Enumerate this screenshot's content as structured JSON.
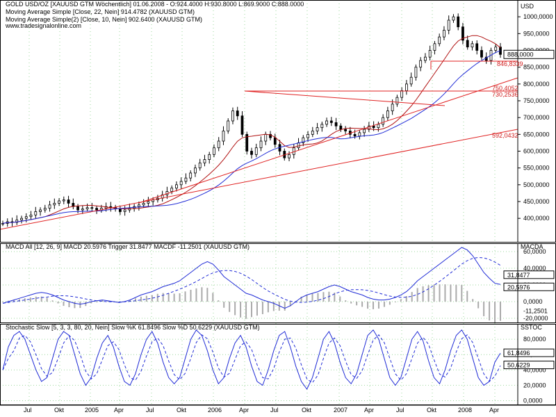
{
  "colors": {
    "price_up": "#000000",
    "price_down": "#000000",
    "sma22": "#b01010",
    "sma10": "#1f2bd6",
    "trendline": "#e02222",
    "macd_line": "#1f2bd6",
    "macd_trigger": "#1f2bd6",
    "macd_hist": "#aaaaaa",
    "stoch_k": "#1f2bd6",
    "stoch_d": "#1f2bd6",
    "grid": "#9ad79a",
    "panel_border": "#000000",
    "axis_text": "#000000",
    "level_text": "#d02020"
  },
  "price_header": {
    "title": "GOLD USD/OZ [XAUUSD GTM  Wöchentlich] 01.06.2008 - O:924.4000  H:930.8000  L:869.9000  C:888.0000",
    "sma22": "Moving Average Simple [Close, 22, Nein] 914.4782 (XAUUSD GTM)",
    "sma10": "Moving Average Simple(2) [Close, 10, Nein] 902.6400 (XAUUSD GTM)",
    "site": "www.tradesignalonline.com"
  },
  "macd_header": "MACD All [12, 26, 9] MACD 20.5976  Trigger 31.8477  MACDF -11.2501 (XAUUSD GTM)",
  "stoch_header": "Stochastic Slow [5, 3, 3, 80, 20, Nein] Slow %K 61.8496 Slow %D 50.6229 (XAUUSD GTM)",
  "axis_titles": {
    "price": "USD",
    "macd": "MACDA",
    "stoch": "SSTOC"
  },
  "x_labels": [
    "Jul",
    "Okt",
    "2005",
    "Apr",
    "Jul",
    "Okt",
    "2006",
    "Apr",
    "Jul",
    "Okt",
    "2007",
    "Apr",
    "Jul",
    "Okt",
    "2008",
    "Apr"
  ],
  "price_ticks": [
    "1000,0000",
    "950,0000",
    "900,0000",
    "850,0000",
    "800,0000",
    "750,0000",
    "700,0000",
    "650,0000",
    "600,0000",
    "550,0000",
    "500,0000",
    "450,0000",
    "400,0000"
  ],
  "macd_ticks": [
    "60,0000",
    "40,0000",
    "20,0000",
    "0,0000",
    "-20,0000"
  ],
  "stoch_ticks": [
    "80,0000",
    "60,0000",
    "40,0000",
    "20,0000",
    "0,0000"
  ],
  "levels": {
    "last_price": "888,0000",
    "l846": "846,8339",
    "l750": "750,4052",
    "l730": "730,2536",
    "l592": "592,0432"
  },
  "macd_last": {
    "trigger": "31,8477",
    "macd": "20,5976",
    "hist": "-11,2501"
  },
  "stoch_last": {
    "k": "61,8496",
    "d": "50,6229"
  },
  "chart_data": [
    {
      "type": "line",
      "title": "GOLD USD/OZ [XAUUSD GTM  Wöchentlich]",
      "x_unit": "weekly",
      "ylim": [
        330,
        1050
      ],
      "series": [
        {
          "name": "Close",
          "values": [
            385,
            390,
            388,
            395,
            400,
            405,
            410,
            420,
            425,
            430,
            440,
            445,
            452,
            455,
            445,
            435,
            425,
            428,
            432,
            430,
            425,
            430,
            435,
            432,
            428,
            420,
            425,
            430,
            435,
            440,
            445,
            450,
            455,
            460,
            470,
            480,
            490,
            500,
            510,
            520,
            535,
            550,
            565,
            575,
            590,
            610,
            630,
            660,
            690,
            720,
            705,
            650,
            600,
            590,
            610,
            630,
            650,
            640,
            620,
            600,
            580,
            590,
            610,
            625,
            640,
            650,
            660,
            670,
            680,
            690,
            685,
            675,
            665,
            660,
            650,
            645,
            655,
            665,
            675,
            670,
            680,
            700,
            720,
            740,
            760,
            780,
            800,
            820,
            850,
            870,
            880,
            900,
            920,
            940,
            960,
            990,
            1000,
            970,
            930,
            910,
            920,
            900,
            880,
            870,
            900,
            910,
            888
          ]
        },
        {
          "name": "Moving Average Simple [Close, 22, Nein]",
          "values": [
            914.4782
          ]
        },
        {
          "name": "Moving Average Simple(2) [Close, 10, Nein]",
          "values": [
            902.64
          ]
        }
      ]
    },
    {
      "type": "line",
      "title": "MACD All [12, 26, 9]",
      "ylim": [
        -25,
        70
      ],
      "series": [
        {
          "name": "MACD",
          "values": [
            -2,
            0,
            2,
            4,
            6,
            8,
            10,
            11,
            10,
            8,
            5,
            2,
            0,
            -2,
            -3,
            -2,
            0,
            1,
            2,
            1,
            0,
            -1,
            0,
            2,
            5,
            8,
            10,
            12,
            15,
            18,
            20,
            22,
            25,
            30,
            35,
            40,
            45,
            48,
            45,
            38,
            30,
            25,
            20,
            15,
            10,
            8,
            5,
            2,
            0,
            -2,
            -5,
            -8,
            -5,
            0,
            5,
            8,
            10,
            12,
            15,
            18,
            20,
            18,
            15,
            12,
            10,
            8,
            5,
            3,
            2,
            2,
            3,
            5,
            8,
            12,
            18,
            25,
            30,
            35,
            40,
            45,
            50,
            55,
            60,
            65,
            62,
            55,
            45,
            35,
            28,
            22,
            20.5976
          ]
        },
        {
          "name": "Trigger",
          "values": [
            31.8477
          ]
        },
        {
          "name": "MACDF",
          "values": [
            -11.2501
          ]
        }
      ]
    },
    {
      "type": "line",
      "title": "Stochastic Slow [5, 3, 3, 80, 20, Nein]",
      "ylim": [
        -5,
        100
      ],
      "series": [
        {
          "name": "Slow %K",
          "values": [
            40,
            70,
            85,
            90,
            80,
            60,
            40,
            25,
            30,
            55,
            80,
            90,
            85,
            60,
            35,
            20,
            30,
            55,
            75,
            85,
            70,
            45,
            25,
            20,
            35,
            60,
            80,
            90,
            75,
            50,
            30,
            22,
            30,
            55,
            80,
            92,
            85,
            65,
            40,
            22,
            30,
            55,
            75,
            85,
            70,
            45,
            25,
            20,
            40,
            65,
            85,
            90,
            70,
            45,
            25,
            15,
            30,
            55,
            80,
            90,
            75,
            50,
            30,
            22,
            35,
            60,
            85,
            92,
            80,
            55,
            30,
            20,
            30,
            55,
            80,
            90,
            78,
            52,
            30,
            22,
            40,
            65,
            85,
            92,
            80,
            55,
            30,
            20,
            25,
            50,
            61.8496
          ]
        },
        {
          "name": "Slow %D",
          "values": [
            50.6229
          ]
        }
      ]
    }
  ]
}
